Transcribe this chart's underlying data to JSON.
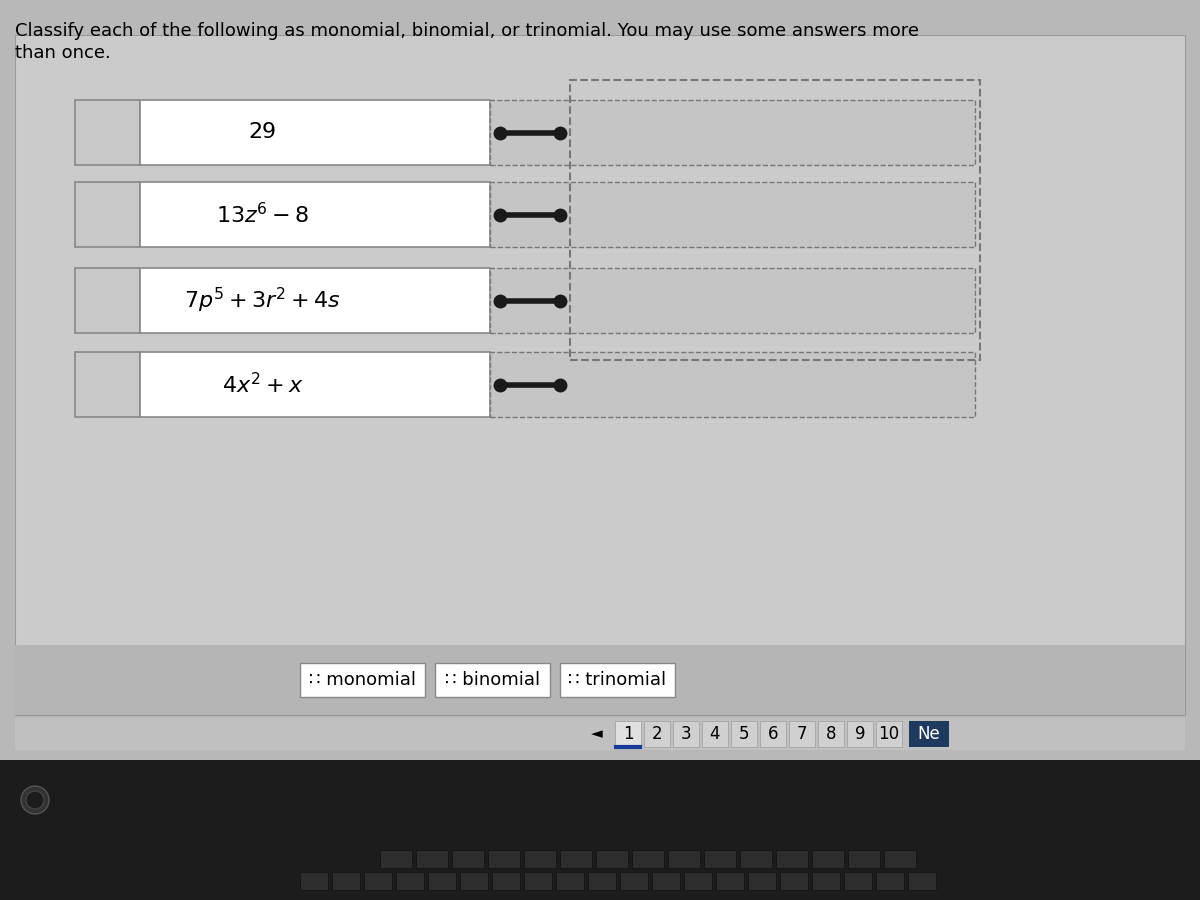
{
  "title_line1": "Classify each of the following as monomial, binomial, or trinomial. You may use some answers more",
  "title_line2": "than once.",
  "expressions_math": [
    "$29$",
    "$13z^6 - 8$",
    "$7p^5 + 3r^2 + 4s$",
    "$4x^2 + x$"
  ],
  "labels": [
    "∷ monomial",
    "∷ binomial",
    "∷ trinomial"
  ],
  "page_numbers": [
    "1",
    "2",
    "3",
    "4",
    "5",
    "6",
    "7",
    "8",
    "9",
    "10"
  ],
  "bg_color": "#b8b8b8",
  "panel_color": "#c0c0c0",
  "expr_box_color": "#c8c8c8",
  "white": "#ffffff",
  "dark_navy": "#1e3a5f",
  "label_bar_color": "#b0b0b0",
  "connector_col": "#1a1a1a",
  "dashed_color": "#777777",
  "title_fontsize": 13,
  "expr_fontsize": 16,
  "label_fontsize": 13,
  "page_fontsize": 12
}
